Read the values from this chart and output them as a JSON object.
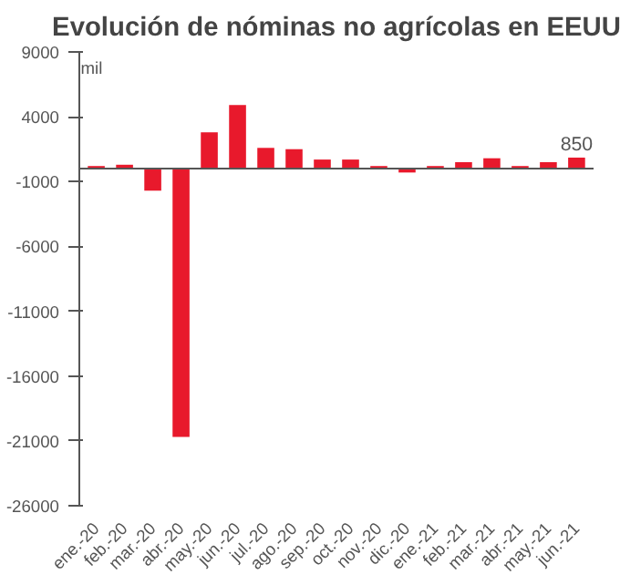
{
  "chart_data": {
    "type": "bar",
    "title": "Evolución de nóminas no agrícolas en EEUU",
    "categories": [
      "ene.-20",
      "feb.-20",
      "mar.-20",
      "abr.-20",
      "may.-20",
      "jun.-20",
      "jul.-20",
      "ago.-20",
      "sep.-20",
      "oct.-20",
      "nov.-20",
      "dic.-20",
      "ene.-21",
      "feb.-21",
      "mar.-21",
      "abr.-21",
      "may.-21",
      "jun.-21"
    ],
    "values": [
      200,
      300,
      -1700,
      -20700,
      2800,
      4900,
      1600,
      1500,
      700,
      700,
      200,
      -300,
      200,
      500,
      800,
      200,
      500,
      850
    ],
    "value_labels": [
      null,
      null,
      null,
      null,
      null,
      null,
      null,
      null,
      null,
      null,
      null,
      null,
      null,
      null,
      null,
      null,
      null,
      "850"
    ],
    "color": "#e8192c",
    "ylabel": "mil",
    "ylim": [
      -26000,
      9000
    ],
    "yticks": [
      -26000,
      -21000,
      -16000,
      -11000,
      -6000,
      -1000,
      4000,
      9000
    ],
    "grid": false
  }
}
